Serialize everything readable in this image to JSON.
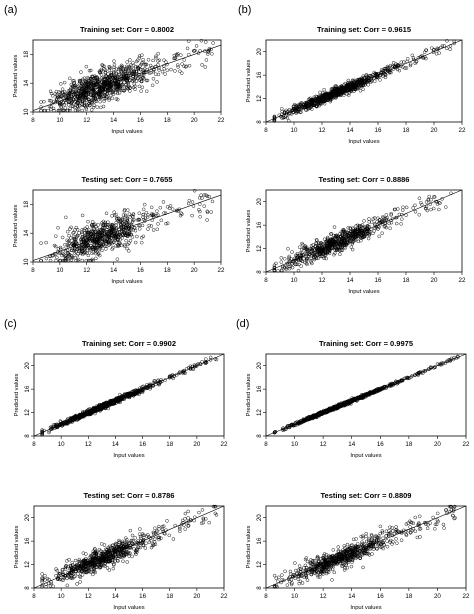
{
  "panel_labels": [
    "(a)",
    "(b)",
    "(c)",
    "(d)"
  ],
  "chart_data": [
    {
      "type": "scatter",
      "panel": "(a)",
      "title": "Training set: Corr = 0.8002",
      "xlabel": "Input values",
      "ylabel": "Predicted values",
      "xlim": [
        8,
        22
      ],
      "ylim": [
        10,
        20
      ],
      "xticks": [
        8,
        10,
        12,
        14,
        16,
        18,
        20,
        22
      ],
      "yticks": [
        10,
        14,
        18
      ],
      "corr": 0.8002,
      "fit_line": {
        "x": [
          8,
          22
        ],
        "y": [
          10.2,
          19.3
        ]
      },
      "points_spread": 2.2,
      "n_points": 900
    },
    {
      "type": "scatter",
      "panel": "(a)",
      "title": "Testing set: Corr = 0.7655",
      "xlabel": "Input values",
      "ylabel": "Predicted values",
      "xlim": [
        8,
        22
      ],
      "ylim": [
        10,
        20
      ],
      "xticks": [
        8,
        10,
        12,
        14,
        16,
        18,
        20,
        22
      ],
      "yticks": [
        10,
        14,
        18
      ],
      "corr": 0.7655,
      "fit_line": {
        "x": [
          8,
          22
        ],
        "y": [
          10.2,
          19.3
        ]
      },
      "points_spread": 2.4,
      "n_points": 700
    },
    {
      "type": "scatter",
      "panel": "(b)",
      "title": "Training set: Corr = 0.9615",
      "xlabel": "Input values",
      "ylabel": "Predicted values",
      "xlim": [
        8,
        22
      ],
      "ylim": [
        8,
        22
      ],
      "xticks": [
        8,
        10,
        12,
        14,
        16,
        18,
        20,
        22
      ],
      "yticks": [
        8,
        12,
        16,
        20
      ],
      "corr": 0.9615,
      "fit_line": {
        "x": [
          8,
          22
        ],
        "y": [
          8,
          22
        ]
      },
      "points_spread": 0.9,
      "n_points": 900
    },
    {
      "type": "scatter",
      "panel": "(b)",
      "title": "Testing set: Corr = 0.8886",
      "xlabel": "Input values",
      "ylabel": "Predicted values",
      "xlim": [
        8,
        22
      ],
      "ylim": [
        8,
        22
      ],
      "xticks": [
        8,
        10,
        12,
        14,
        16,
        18,
        20,
        22
      ],
      "yticks": [
        8,
        12,
        16,
        20
      ],
      "corr": 0.8886,
      "fit_line": {
        "x": [
          8,
          22
        ],
        "y": [
          8,
          22
        ]
      },
      "points_spread": 1.6,
      "n_points": 700
    },
    {
      "type": "scatter",
      "panel": "(c)",
      "title": "Training set: Corr = 0.9902",
      "xlabel": "Input values",
      "ylabel": "Predicted values",
      "xlim": [
        8,
        22
      ],
      "ylim": [
        8,
        22
      ],
      "xticks": [
        8,
        10,
        12,
        14,
        16,
        18,
        20,
        22
      ],
      "yticks": [
        8,
        12,
        16,
        20
      ],
      "corr": 0.9902,
      "fit_line": {
        "x": [
          8,
          22
        ],
        "y": [
          8,
          22
        ]
      },
      "points_spread": 0.45,
      "n_points": 900
    },
    {
      "type": "scatter",
      "panel": "(c)",
      "title": "Testing set: Corr = 0.8786",
      "xlabel": "Input values",
      "ylabel": "Predicted values",
      "xlim": [
        8,
        22
      ],
      "ylim": [
        8,
        22
      ],
      "xticks": [
        8,
        10,
        12,
        14,
        16,
        18,
        20,
        22
      ],
      "yticks": [
        8,
        12,
        16,
        20
      ],
      "corr": 0.8786,
      "fit_line": {
        "x": [
          8,
          22
        ],
        "y": [
          8,
          22
        ]
      },
      "points_spread": 1.7,
      "n_points": 700
    },
    {
      "type": "scatter",
      "panel": "(d)",
      "title": "Training set: Corr = 0.9975",
      "xlabel": "Input values",
      "ylabel": "Predicted values",
      "xlim": [
        8,
        22
      ],
      "ylim": [
        8,
        22
      ],
      "xticks": [
        8,
        10,
        12,
        14,
        16,
        18,
        20,
        22
      ],
      "yticks": [
        8,
        12,
        16,
        20
      ],
      "corr": 0.9975,
      "fit_line": {
        "x": [
          8,
          22
        ],
        "y": [
          8,
          22
        ]
      },
      "points_spread": 0.25,
      "n_points": 900
    },
    {
      "type": "scatter",
      "panel": "(d)",
      "title": "Testing set: Corr = 0.8809",
      "xlabel": "Input values",
      "ylabel": "Predicted values",
      "xlim": [
        8,
        22
      ],
      "ylim": [
        8,
        22
      ],
      "xticks": [
        8,
        10,
        12,
        14,
        16,
        18,
        20,
        22
      ],
      "yticks": [
        8,
        12,
        16,
        20
      ],
      "corr": 0.8809,
      "fit_line": {
        "x": [
          8,
          22
        ],
        "y": [
          8,
          22
        ]
      },
      "points_spread": 1.7,
      "n_points": 700
    }
  ]
}
